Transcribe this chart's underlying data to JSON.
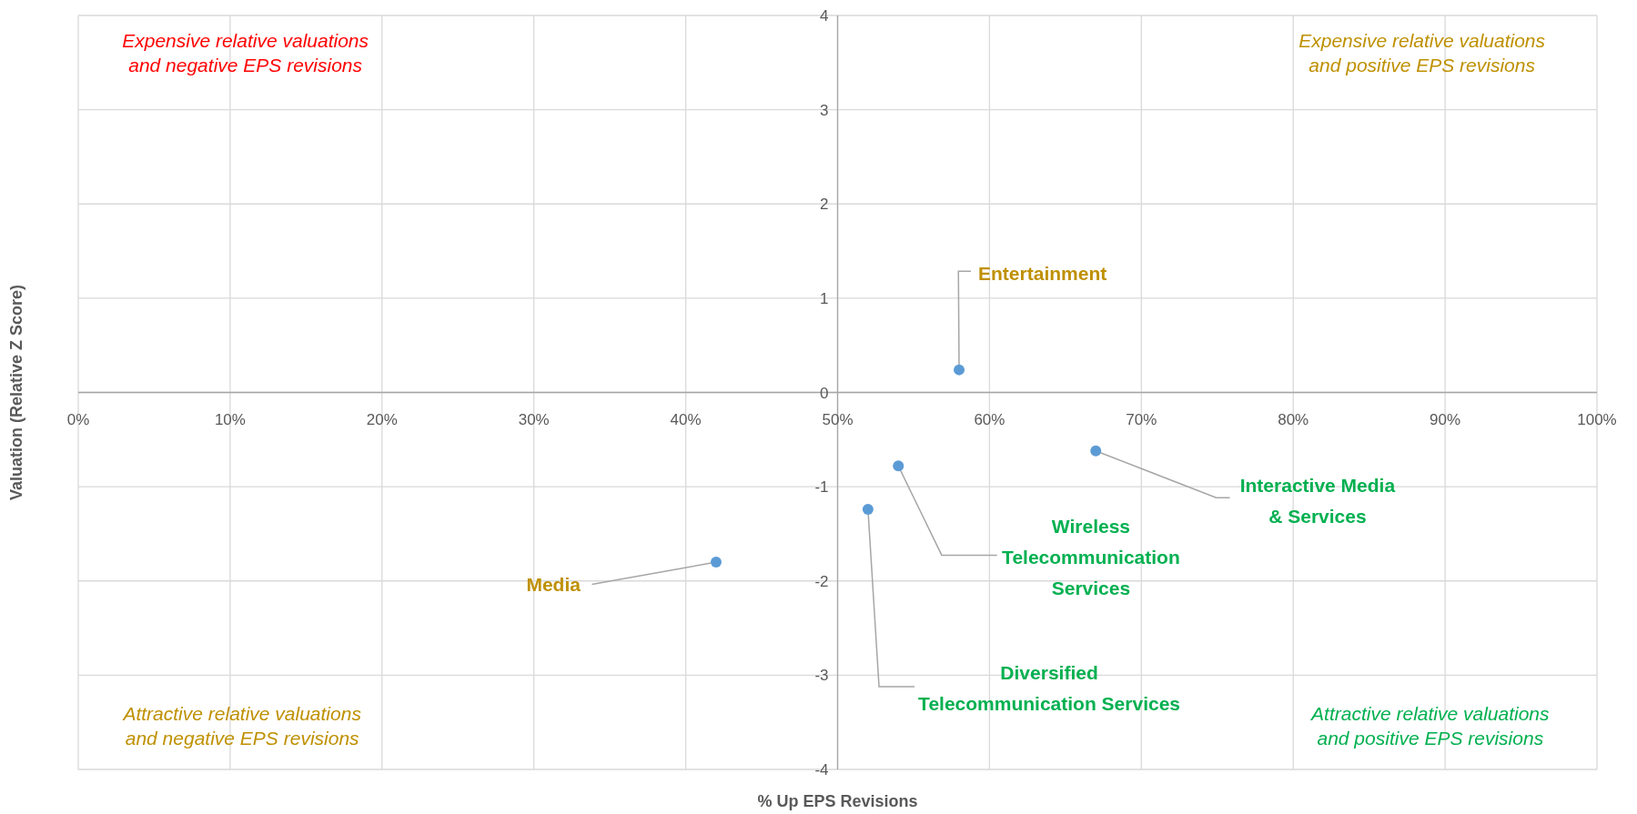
{
  "chart_data": {
    "type": "scatter",
    "xlabel": "% Up EPS Revisions",
    "ylabel": "Valuation (Relative Z Score)",
    "x": [
      58,
      67,
      54,
      52,
      42
    ],
    "values": [
      0.24,
      -0.62,
      -0.78,
      -1.24,
      -1.8
    ],
    "color": "#5b9bd5",
    "marker": "circle",
    "grid": true,
    "xlim": [
      0,
      100
    ],
    "xticks": [
      {
        "value": 0,
        "label": "0%"
      },
      {
        "value": 10,
        "label": "10%"
      },
      {
        "value": 20,
        "label": "20%"
      },
      {
        "value": 30,
        "label": "30%"
      },
      {
        "value": 40,
        "label": "40%"
      },
      {
        "value": 50,
        "label": "50%"
      },
      {
        "value": 60,
        "label": "60%"
      },
      {
        "value": 70,
        "label": "70%"
      },
      {
        "value": 80,
        "label": "80%"
      },
      {
        "value": 90,
        "label": "90%"
      },
      {
        "value": 100,
        "label": "100%"
      }
    ],
    "ylim": [
      -4,
      4
    ],
    "yticks": [
      -4,
      -3,
      -2,
      -1,
      0,
      1,
      2,
      3,
      4
    ],
    "annotations": [
      {
        "text": "Entertainment",
        "x": 58,
        "y": 0.24
      },
      {
        "text": "Interactive Media\n& Services",
        "x": 67,
        "y": -0.62
      },
      {
        "text": "Wireless\nTelecommunication\nServices",
        "x": 54,
        "y": -0.78
      },
      {
        "text": "Diversified\nTelecommunication Services",
        "x": 52,
        "y": -1.24
      },
      {
        "text": "Media",
        "x": 42,
        "y": -1.8
      },
      "Expensive relative valuations\nand negative EPS revisions",
      "Expensive relative valuations\nand positive EPS revisions",
      "Attractive relative valuations\nand negative EPS revisions",
      "Attractive relative valuations\nand positive EPS revisions"
    ]
  }
}
